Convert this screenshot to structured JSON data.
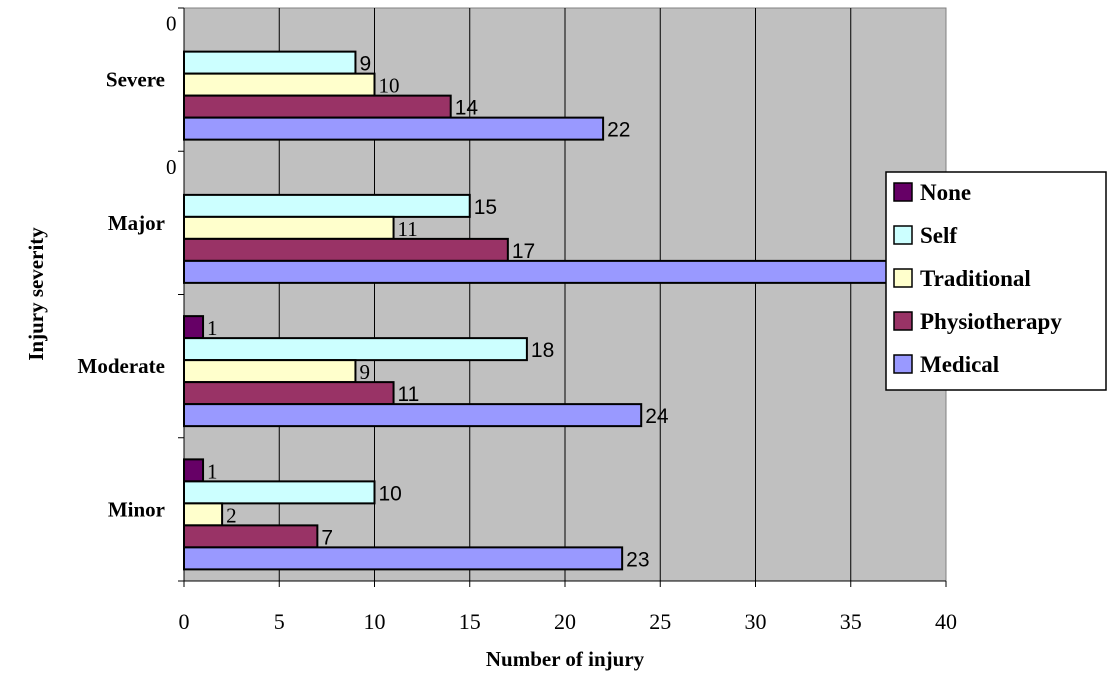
{
  "chart_data": {
    "type": "bar",
    "orientation": "horizontal",
    "title": "",
    "xlabel": "Number of injury",
    "ylabel": "Injury severity",
    "xlim": [
      0,
      40
    ],
    "x_ticks": [
      "0",
      "5",
      "10",
      "15",
      "20",
      "25",
      "30",
      "35",
      "40"
    ],
    "grid": true,
    "plot_background": "#c0c0c0",
    "legend_position": "right",
    "categories": [
      "Minor",
      "Moderate",
      "Major",
      "Severe"
    ],
    "series": [
      {
        "name": "None",
        "color": "#660066",
        "values": [
          1,
          1,
          0,
          0
        ]
      },
      {
        "name": "Self",
        "color": "#ccffff",
        "values": [
          10,
          18,
          15,
          9
        ]
      },
      {
        "name": "Traditional",
        "color": "#ffffcc",
        "values": [
          2,
          9,
          11,
          10
        ]
      },
      {
        "name": "Physiotherapy",
        "color": "#993366",
        "values": [
          7,
          11,
          17,
          14
        ]
      },
      {
        "name": "Medical",
        "color": "#9999ff",
        "values": [
          23,
          24,
          38,
          22
        ]
      }
    ]
  }
}
